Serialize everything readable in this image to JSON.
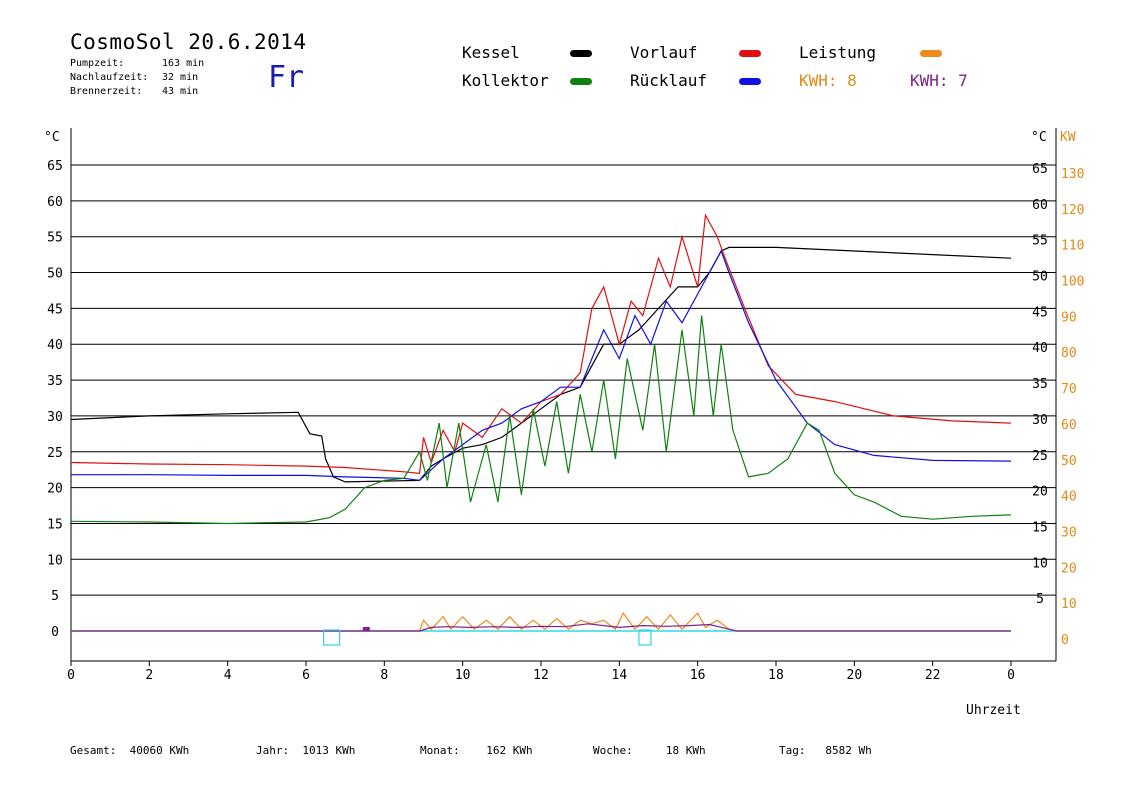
{
  "header": {
    "title": "CosmoSol 20.6.2014",
    "day_name": "Fr",
    "stats": [
      {
        "label": "Pumpzeit:",
        "value": "163 min"
      },
      {
        "label": "Nachlaufzeit:",
        "value": "32 min"
      },
      {
        "label": "Brennerzeit:",
        "value": "43 min"
      }
    ]
  },
  "legend": {
    "kessel": {
      "label": "Kessel",
      "color": "#000000"
    },
    "vorlauf": {
      "label": "Vorlauf",
      "color": "#e01010"
    },
    "leistung": {
      "label": "Leistung",
      "color": "#f08a1a"
    },
    "kollektor": {
      "label": "Kollektor",
      "color": "#108010"
    },
    "ruecklauf": {
      "label": "Rücklauf",
      "color": "#1010e0"
    },
    "kwh_orange": {
      "label": "KWH: 8",
      "color": "#e08a1a"
    },
    "kwh_purple": {
      "label": "KWH: 7",
      "color": "#80208a"
    }
  },
  "footer": {
    "gesamt": {
      "label": "Gesamt:",
      "value": "40060 KWh"
    },
    "jahr": {
      "label": "Jahr:",
      "value": "1013 KWh"
    },
    "monat": {
      "label": "Monat:",
      "value": "162 KWh"
    },
    "woche": {
      "label": "Woche:",
      "value": "18 KWh"
    },
    "tag": {
      "label": "Tag:",
      "value": "8582 Wh"
    }
  },
  "chart_data": {
    "type": "line",
    "xlabel": "Uhrzeit",
    "ylabel_left": "°C",
    "ylabel_right_temp": "°C",
    "ylabel_right_power": "KW",
    "xlim": [
      0,
      24
    ],
    "ylim": [
      0,
      65
    ],
    "ylim_power": [
      0,
      130
    ],
    "x_ticks": [
      "0",
      "2",
      "4",
      "6",
      "8",
      "10",
      "12",
      "14",
      "16",
      "18",
      "20",
      "22",
      "0"
    ],
    "y_ticks_left": [
      "0",
      "5",
      "10",
      "15",
      "20",
      "25",
      "30",
      "35",
      "40",
      "45",
      "50",
      "55",
      "60",
      "65"
    ],
    "y_ticks_right_temp": [
      "5",
      "10",
      "15",
      "20",
      "25",
      "30",
      "35",
      "40",
      "45",
      "50",
      "55",
      "60",
      "65"
    ],
    "y_ticks_right_power": [
      "0",
      "10",
      "20",
      "30",
      "40",
      "50",
      "60",
      "70",
      "80",
      "90",
      "100",
      "110",
      "120",
      "130"
    ],
    "grid": "horizontal",
    "series": [
      {
        "name": "Kessel",
        "color": "#000000",
        "points": [
          [
            0,
            29.5
          ],
          [
            2,
            30
          ],
          [
            4,
            30.3
          ],
          [
            5.8,
            30.5
          ],
          [
            6.1,
            27.5
          ],
          [
            6.4,
            27.2
          ],
          [
            6.5,
            24
          ],
          [
            6.7,
            21.5
          ],
          [
            7,
            20.8
          ],
          [
            8.9,
            21
          ],
          [
            9.2,
            23
          ],
          [
            9.5,
            24
          ],
          [
            10,
            25.5
          ],
          [
            10.5,
            26
          ],
          [
            11,
            27
          ],
          [
            11.5,
            29
          ],
          [
            12,
            31
          ],
          [
            12.5,
            33
          ],
          [
            13,
            34
          ],
          [
            13.3,
            37
          ],
          [
            13.6,
            40
          ],
          [
            14,
            40
          ],
          [
            14.5,
            42
          ],
          [
            15,
            45
          ],
          [
            15.5,
            48
          ],
          [
            16,
            48
          ],
          [
            16.3,
            50
          ],
          [
            16.6,
            53
          ],
          [
            16.8,
            53.5
          ],
          [
            18,
            53.5
          ],
          [
            20,
            53
          ],
          [
            22,
            52.5
          ],
          [
            24,
            52
          ]
        ]
      },
      {
        "name": "Vorlauf",
        "color": "#e01010",
        "points": [
          [
            0,
            23.5
          ],
          [
            2,
            23.3
          ],
          [
            4,
            23.2
          ],
          [
            6,
            23
          ],
          [
            7,
            22.8
          ],
          [
            8.5,
            22.2
          ],
          [
            8.9,
            22
          ],
          [
            9,
            27
          ],
          [
            9.2,
            23.5
          ],
          [
            9.5,
            28
          ],
          [
            9.8,
            25
          ],
          [
            10,
            29
          ],
          [
            10.5,
            27
          ],
          [
            11,
            31
          ],
          [
            11.5,
            29
          ],
          [
            12,
            32
          ],
          [
            12.5,
            33
          ],
          [
            13,
            36
          ],
          [
            13.3,
            45
          ],
          [
            13.6,
            48
          ],
          [
            14,
            40
          ],
          [
            14.3,
            46
          ],
          [
            14.6,
            44
          ],
          [
            15,
            52
          ],
          [
            15.3,
            48
          ],
          [
            15.6,
            55
          ],
          [
            16,
            48
          ],
          [
            16.2,
            58
          ],
          [
            16.5,
            55
          ],
          [
            16.7,
            52
          ],
          [
            17.2,
            45
          ],
          [
            17.8,
            37
          ],
          [
            18.5,
            33
          ],
          [
            19.5,
            32
          ],
          [
            21,
            30
          ],
          [
            22.5,
            29.3
          ],
          [
            24,
            29
          ]
        ]
      },
      {
        "name": "Rücklauf",
        "color": "#1010e0",
        "points": [
          [
            0,
            21.8
          ],
          [
            2,
            21.8
          ],
          [
            4,
            21.7
          ],
          [
            6,
            21.7
          ],
          [
            7,
            21.5
          ],
          [
            8.5,
            21.3
          ],
          [
            8.9,
            21
          ],
          [
            9.2,
            22.5
          ],
          [
            9.5,
            24
          ],
          [
            10,
            26
          ],
          [
            10.5,
            28
          ],
          [
            11,
            29
          ],
          [
            11.5,
            31
          ],
          [
            12,
            32
          ],
          [
            12.5,
            34
          ],
          [
            13,
            34
          ],
          [
            13.3,
            38
          ],
          [
            13.6,
            42
          ],
          [
            14,
            38
          ],
          [
            14.4,
            44
          ],
          [
            14.8,
            40
          ],
          [
            15.2,
            46
          ],
          [
            15.6,
            43
          ],
          [
            16,
            47
          ],
          [
            16.3,
            50
          ],
          [
            16.6,
            53
          ],
          [
            16.8,
            50
          ],
          [
            17.3,
            43
          ],
          [
            18,
            35
          ],
          [
            18.8,
            29
          ],
          [
            19.5,
            26
          ],
          [
            20.5,
            24.5
          ],
          [
            22,
            23.8
          ],
          [
            24,
            23.7
          ]
        ]
      },
      {
        "name": "Kollektor",
        "color": "#108010",
        "points": [
          [
            0,
            15.3
          ],
          [
            2,
            15.2
          ],
          [
            4,
            15
          ],
          [
            5,
            15.1
          ],
          [
            6,
            15.2
          ],
          [
            6.6,
            15.8
          ],
          [
            7,
            17
          ],
          [
            7.5,
            20
          ],
          [
            8,
            21
          ],
          [
            8.5,
            21.3
          ],
          [
            8.9,
            25
          ],
          [
            9.1,
            21
          ],
          [
            9.4,
            29
          ],
          [
            9.6,
            20
          ],
          [
            9.9,
            29
          ],
          [
            10.2,
            18
          ],
          [
            10.6,
            26
          ],
          [
            10.9,
            18
          ],
          [
            11.2,
            30
          ],
          [
            11.5,
            19
          ],
          [
            11.8,
            31
          ],
          [
            12.1,
            23
          ],
          [
            12.4,
            32
          ],
          [
            12.7,
            22
          ],
          [
            13,
            33
          ],
          [
            13.3,
            25
          ],
          [
            13.6,
            35
          ],
          [
            13.9,
            24
          ],
          [
            14.2,
            38
          ],
          [
            14.6,
            28
          ],
          [
            14.9,
            40
          ],
          [
            15.2,
            25
          ],
          [
            15.6,
            42
          ],
          [
            15.9,
            30
          ],
          [
            16.1,
            44
          ],
          [
            16.4,
            30
          ],
          [
            16.6,
            40
          ],
          [
            16.9,
            28
          ],
          [
            17.3,
            21.5
          ],
          [
            17.8,
            22
          ],
          [
            18.3,
            24
          ],
          [
            18.8,
            29
          ],
          [
            19.1,
            28
          ],
          [
            19.5,
            22
          ],
          [
            20,
            19
          ],
          [
            20.5,
            18
          ],
          [
            21.2,
            16
          ],
          [
            22,
            15.6
          ],
          [
            23,
            16
          ],
          [
            24,
            16.2
          ]
        ]
      }
    ],
    "power_series": [
      {
        "name": "Leistung",
        "color": "#f08a1a",
        "points": [
          [
            0,
            0
          ],
          [
            8.9,
            0
          ],
          [
            9,
            3
          ],
          [
            9.2,
            0.5
          ],
          [
            9.5,
            4
          ],
          [
            9.7,
            0.5
          ],
          [
            10,
            4
          ],
          [
            10.3,
            0.5
          ],
          [
            10.6,
            3
          ],
          [
            10.9,
            0.5
          ],
          [
            11.2,
            4
          ],
          [
            11.5,
            0.5
          ],
          [
            11.8,
            3
          ],
          [
            12.1,
            0.5
          ],
          [
            12.4,
            3.5
          ],
          [
            12.7,
            0.5
          ],
          [
            13,
            3
          ],
          [
            13.3,
            2
          ],
          [
            13.6,
            3
          ],
          [
            13.9,
            0.5
          ],
          [
            14.1,
            5
          ],
          [
            14.4,
            0.5
          ],
          [
            14.7,
            4
          ],
          [
            15,
            0.5
          ],
          [
            15.3,
            4.5
          ],
          [
            15.6,
            0.5
          ],
          [
            16,
            5
          ],
          [
            16.2,
            1
          ],
          [
            16.5,
            3
          ],
          [
            16.8,
            0.5
          ],
          [
            17,
            0
          ],
          [
            24,
            0
          ]
        ]
      },
      {
        "name": "KWH purple",
        "color": "#80208a",
        "points": [
          [
            0,
            0
          ],
          [
            8.9,
            0
          ],
          [
            9.2,
            1
          ],
          [
            9.6,
            1.2
          ],
          [
            10.2,
            1
          ],
          [
            10.8,
            1.2
          ],
          [
            11.4,
            1
          ],
          [
            12,
            1.3
          ],
          [
            12.6,
            1.2
          ],
          [
            13.2,
            2
          ],
          [
            13.6,
            1.5
          ],
          [
            14,
            1
          ],
          [
            14.6,
            1.5
          ],
          [
            15.2,
            1.3
          ],
          [
            15.8,
            1.5
          ],
          [
            16.3,
            1.8
          ],
          [
            16.8,
            0.5
          ],
          [
            17,
            0
          ],
          [
            24,
            0
          ]
        ]
      }
    ],
    "baseline": {
      "color": "#30d8e0",
      "value": 0
    }
  }
}
